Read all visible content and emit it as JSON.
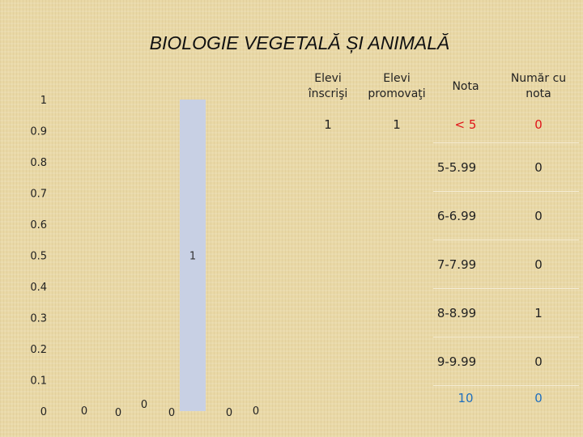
{
  "title": "BIOLOGIE VEGETALĂ ȘI ANIMALĂ",
  "chart_data": {
    "type": "bar",
    "categories": [
      "< 5",
      "5-5.99",
      "6-6.99",
      "7-7.99",
      "8-8.99",
      "9-9.99",
      "10"
    ],
    "values": [
      0,
      0,
      0,
      0,
      1,
      0,
      0
    ],
    "ylim": [
      0,
      1
    ],
    "yticks": [
      "0",
      "0.1",
      "0.2",
      "0.3",
      "0.4",
      "0.5",
      "0.6",
      "0.7",
      "0.8",
      "0.9",
      "1"
    ],
    "bar_color": "#c8d0e4",
    "grid": false,
    "legend": "none"
  },
  "table": {
    "headers": [
      "Elevi înscrişi",
      "Elevi promovaţi",
      "Nota",
      "Număr cu nota"
    ],
    "enrolled": "1",
    "promoted": "1",
    "rows": [
      {
        "grade": "< 5",
        "count": "0"
      },
      {
        "grade": "5-5.99",
        "count": "0"
      },
      {
        "grade": "6-6.99",
        "count": "0"
      },
      {
        "grade": "7-7.99",
        "count": "0"
      },
      {
        "grade": "8-8.99",
        "count": "1"
      },
      {
        "grade": "9-9.99",
        "count": "0"
      },
      {
        "grade": "10",
        "count": "0"
      }
    ],
    "colors": {
      "red": "#e0141a",
      "blue": "#1f6fbf"
    }
  }
}
